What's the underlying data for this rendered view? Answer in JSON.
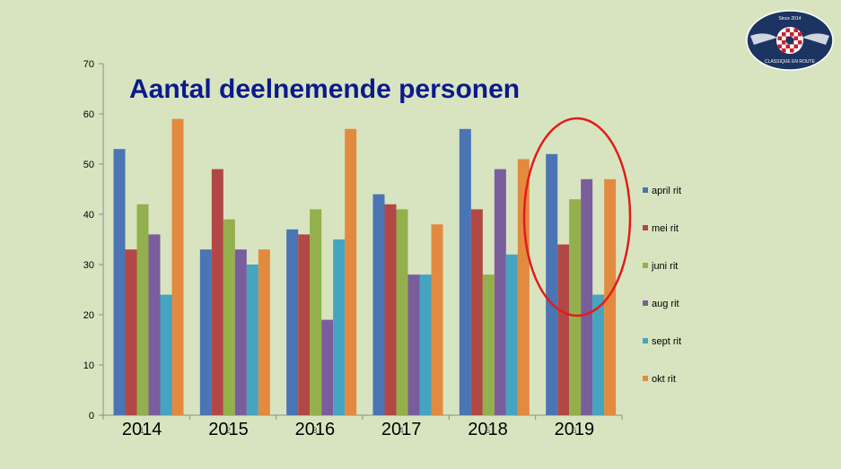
{
  "chart_data": {
    "type": "bar",
    "title": "Aantal deelnemende personen",
    "categories": [
      "2014",
      "2015",
      "2016",
      "2017",
      "2018",
      "2019"
    ],
    "category_index": [
      "1",
      "2",
      "3",
      "4",
      "5",
      "6"
    ],
    "ylim": [
      0,
      70
    ],
    "yticks": [
      0,
      10,
      20,
      30,
      40,
      50,
      60,
      70
    ],
    "grid": false,
    "legend_position": "right",
    "series": [
      {
        "name": "april rit",
        "color": "#4a74b4",
        "values": [
          53,
          33,
          37,
          44,
          57,
          52
        ]
      },
      {
        "name": "mei rit",
        "color": "#b24845",
        "values": [
          33,
          49,
          36,
          42,
          41,
          34
        ]
      },
      {
        "name": "juni rit",
        "color": "#93b04c",
        "values": [
          42,
          39,
          41,
          41,
          28,
          43
        ]
      },
      {
        "name": "aug rit",
        "color": "#7a5d9d",
        "values": [
          36,
          33,
          19,
          28,
          49,
          47
        ]
      },
      {
        "name": "sept rit",
        "color": "#45a4c0",
        "values": [
          24,
          30,
          35,
          28,
          32,
          24
        ]
      },
      {
        "name": "okt rit",
        "color": "#e28a3f",
        "values": [
          59,
          33,
          57,
          38,
          51,
          47
        ]
      }
    ],
    "highlight": {
      "category": "2019",
      "color": "#e31b1b"
    }
  },
  "logo": {
    "top_text": "Since 2014",
    "bottom_text": "CLASSIQUE EN ROUTE",
    "ring_color": "#1c3461"
  }
}
